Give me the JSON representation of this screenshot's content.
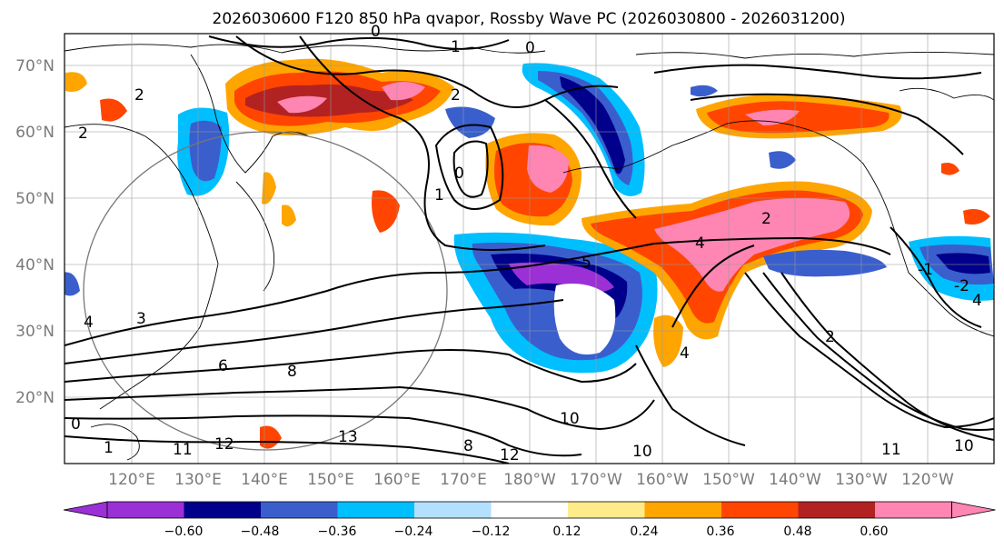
{
  "title": "2026030600 F120 850 hPa qvapor, Rossby Wave PC (2026030800 - 2026031200)",
  "map": {
    "lat_ticks": [
      "70°N",
      "60°N",
      "50°N",
      "40°N",
      "30°N",
      "20°N"
    ],
    "lon_ticks": [
      "120°E",
      "130°E",
      "140°E",
      "150°E",
      "160°E",
      "170°E",
      "180°W",
      "170°W",
      "160°W",
      "150°W",
      "140°W",
      "130°W",
      "120°W"
    ],
    "contour_labels": [
      "0",
      "1",
      "0",
      "2",
      "2",
      "0",
      "1",
      "2",
      "4",
      "5",
      "6",
      "8",
      "12",
      "11",
      "13",
      "8",
      "10",
      "12",
      "11",
      "10",
      "2",
      "4",
      "4",
      "0",
      "1",
      "3",
      "2",
      "4",
      "-1",
      "-2",
      "10"
    ]
  },
  "colorbar": {
    "ticks": [
      "−0.60",
      "−0.48",
      "−0.36",
      "−0.24",
      "−0.12",
      "0.12",
      "0.24",
      "0.36",
      "0.48",
      "0.60"
    ],
    "colors": [
      "#9b30d6",
      "#00008b",
      "#3a5fcd",
      "#00bfff",
      "#b3e0ff",
      "#ffffff",
      "#ffeb8a",
      "#ffa500",
      "#ff4500",
      "#b22222",
      "#ff85b3"
    ],
    "extend": "both"
  }
}
